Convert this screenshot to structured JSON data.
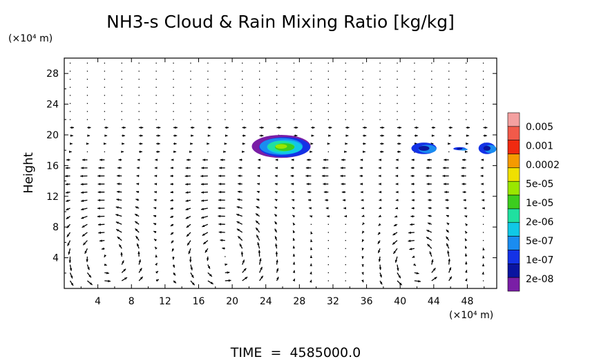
{
  "chart_data": {
    "type": "heatmap",
    "title": "NH3-s Cloud & Rain Mixing Ratio [kg/kg]",
    "ylabel": "Height",
    "x_unit": "(×10⁴ m)",
    "y_unit": "(×10⁴ m)",
    "xlim": [
      0,
      51.5
    ],
    "ylim": [
      0,
      30
    ],
    "x_ticks": [
      4,
      8,
      12,
      16,
      20,
      24,
      28,
      32,
      36,
      40,
      44,
      48
    ],
    "y_ticks": [
      4,
      8,
      12,
      16,
      20,
      24,
      28
    ],
    "footer": "TIME  =  4585000.0",
    "colorbar": {
      "labels": [
        "0.005",
        "0.001",
        "0.0002",
        "5e-05",
        "1e-05",
        "2e-06",
        "5e-07",
        "1e-07",
        "2e-08"
      ],
      "colors": [
        "#f4a0a0",
        "#f25a4a",
        "#f02a10",
        "#f59a00",
        "#f0e000",
        "#9ae600",
        "#3ccd1e",
        "#1fe0a0",
        "#10c8e6",
        "#1a8cf0",
        "#1432e6",
        "#0a14a0",
        "#7a1ea6"
      ]
    },
    "cloud_regions": [
      {
        "x": [
          22.5,
          29.5
        ],
        "y": [
          17,
          20
        ],
        "max_level": "5e-05"
      },
      {
        "x": [
          41.5,
          44.5
        ],
        "y": [
          17.5,
          19
        ],
        "max_level": "1e-07"
      },
      {
        "x": [
          46.5,
          48
        ],
        "y": [
          18,
          18.4
        ],
        "max_level": "1e-07"
      },
      {
        "x": [
          49.5,
          51.5
        ],
        "y": [
          17.5,
          19
        ],
        "max_level": "1e-07"
      }
    ],
    "vortices": [
      {
        "cx": 5,
        "cy": 4,
        "rx": 5,
        "ry": 5.5,
        "sense": "ccw"
      },
      {
        "cx": 19,
        "cy": 4,
        "rx": 5.5,
        "ry": 5.5,
        "sense": "ccw"
      },
      {
        "cx": 42,
        "cy": 3.5,
        "rx": 4,
        "ry": 4,
        "sense": "ccw"
      }
    ]
  }
}
